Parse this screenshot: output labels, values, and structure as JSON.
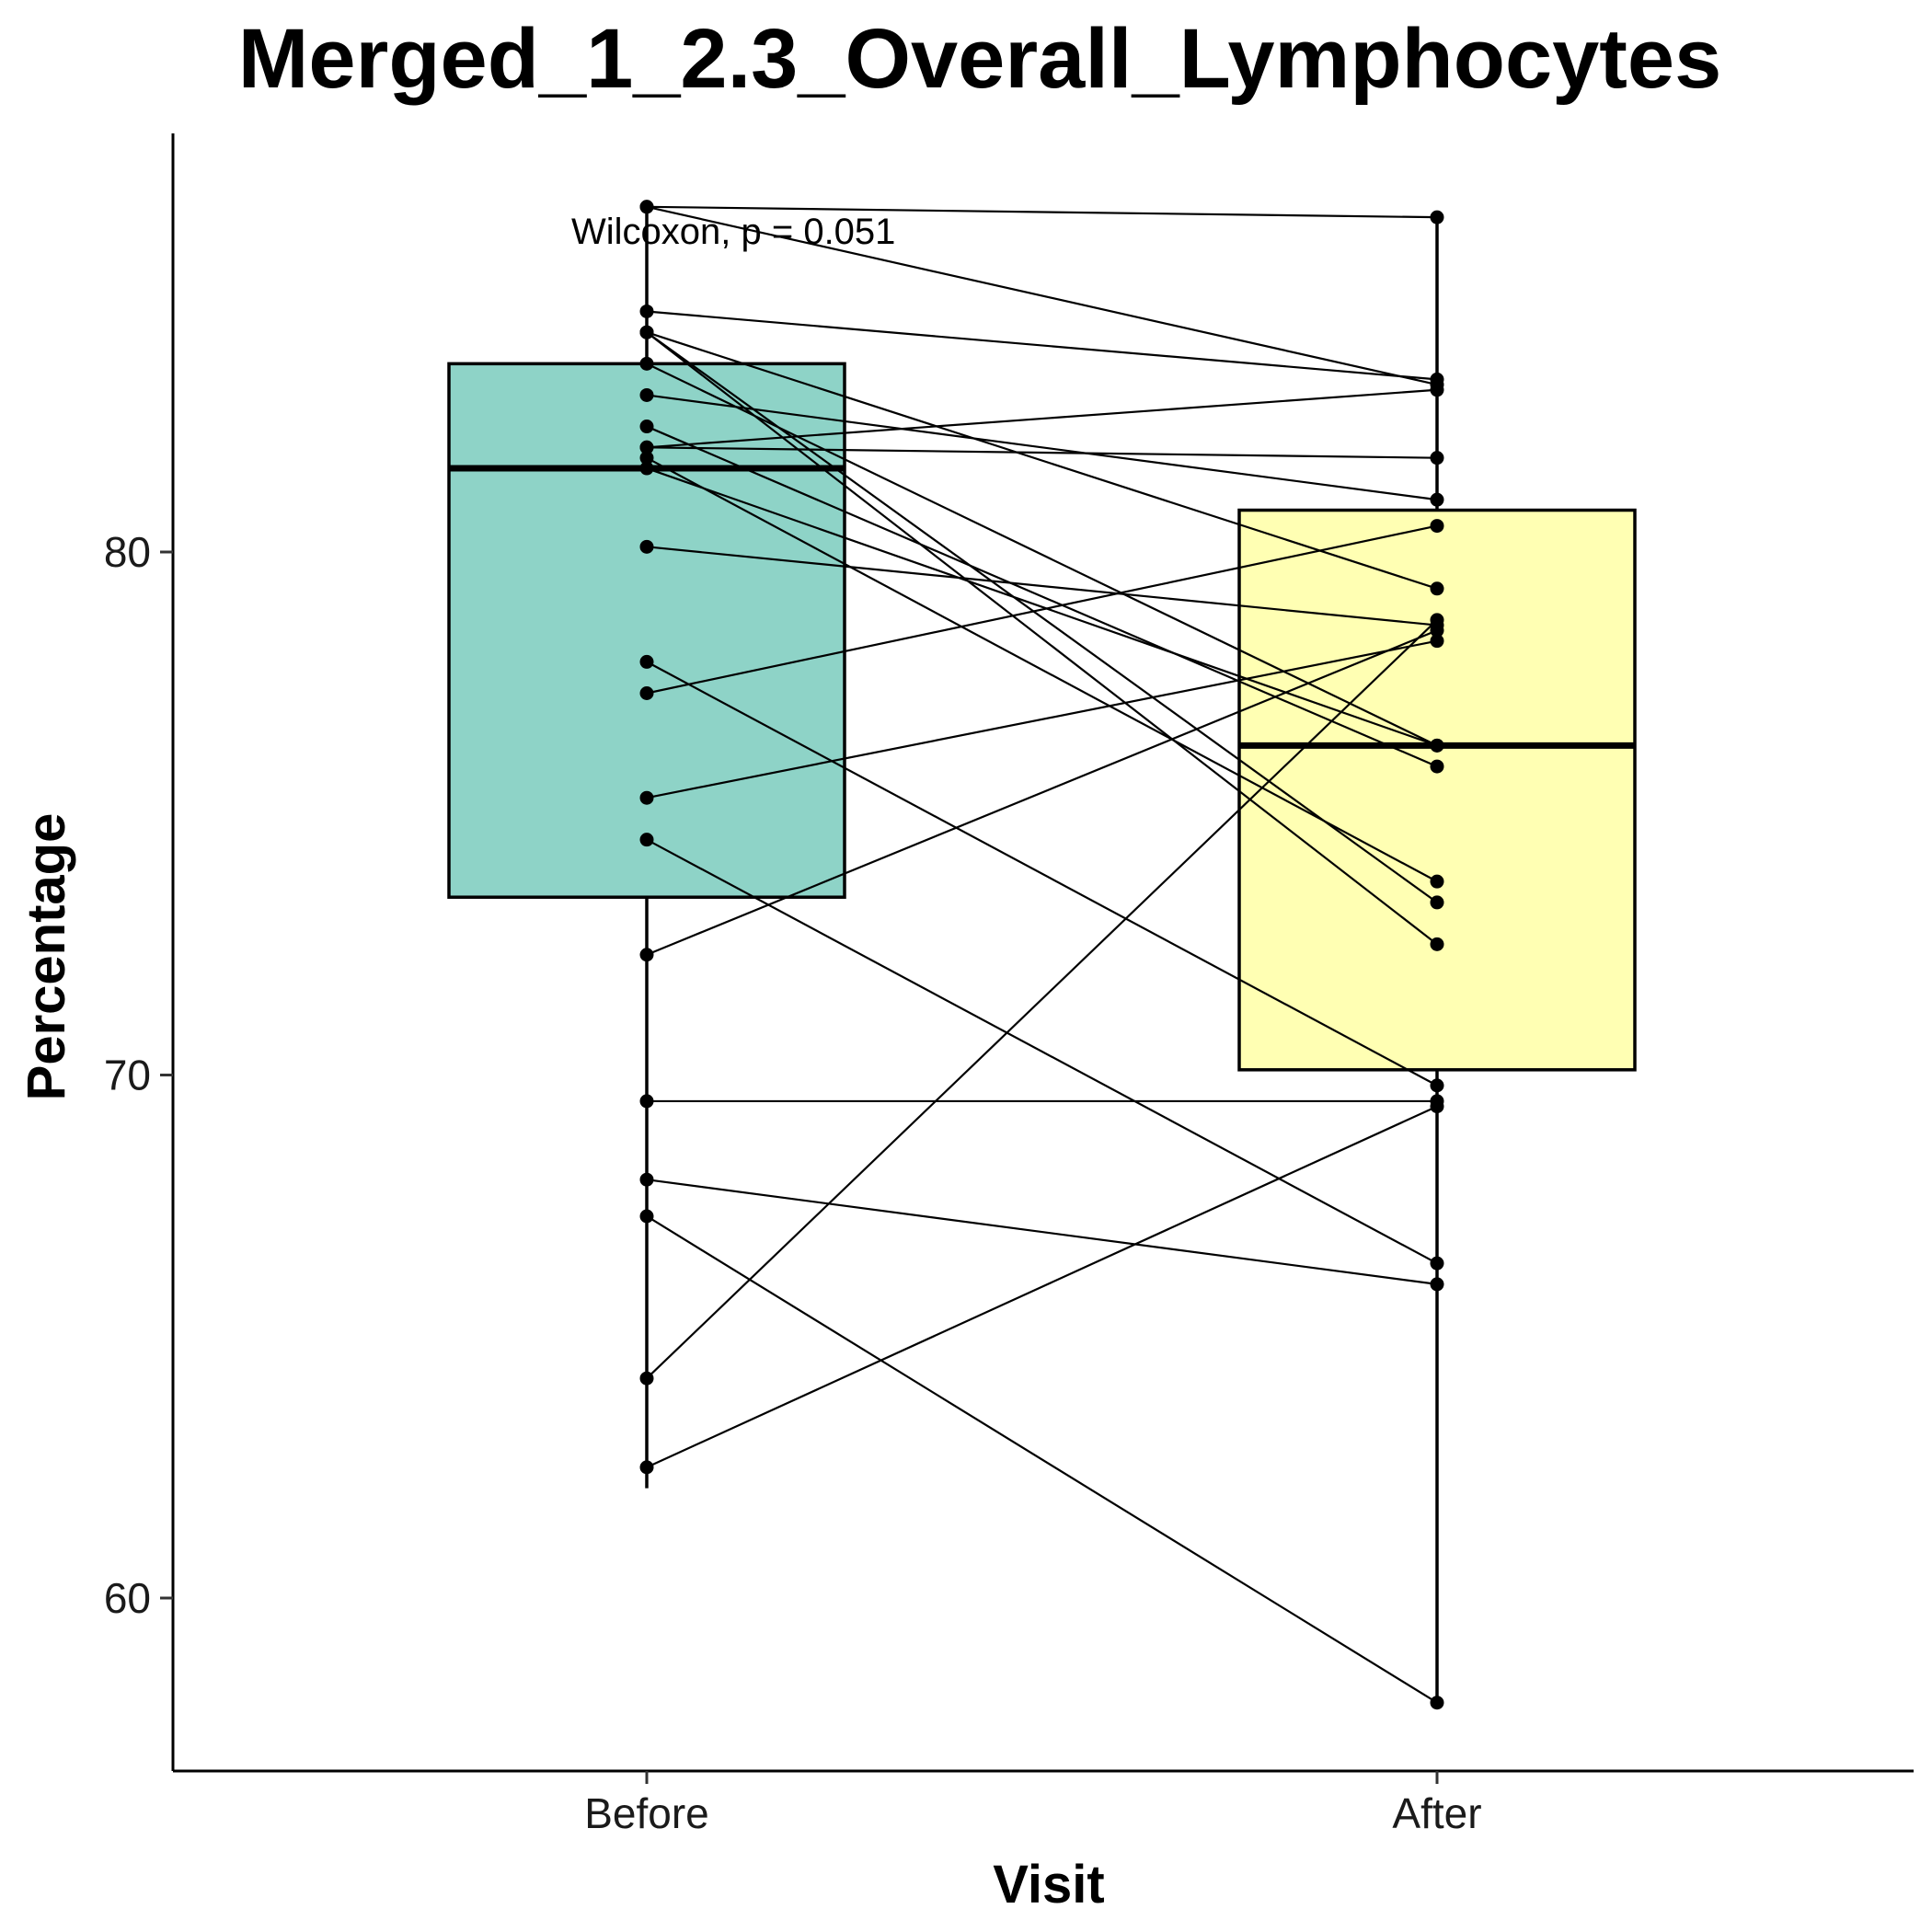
{
  "chart_data": {
    "type": "box",
    "title": "Merged_1_2.3_Overall_Lymphocytes",
    "xlabel": "Visit",
    "ylabel": "Percentage",
    "categories": [
      "Before",
      "After"
    ],
    "ylim": [
      56.5,
      88.5
    ],
    "yticks": [
      60,
      70,
      80
    ],
    "annotation": "Wilcoxon, p = 0.051",
    "colors": {
      "Before": "#8ED3C7",
      "After": "#FFFFB3",
      "line": "#000000"
    },
    "boxes": [
      {
        "group": "Before",
        "q1": 73.4,
        "median": 81.6,
        "q3": 83.6,
        "whisker_low": 62.1,
        "whisker_high": 86.6
      },
      {
        "group": "After",
        "q1": 70.1,
        "median": 76.3,
        "q3": 80.8,
        "whisker_low": 57.9,
        "whisker_high": 86.4
      }
    ],
    "pairs": [
      [
        86.6,
        86.4
      ],
      [
        86.6,
        83.2
      ],
      [
        84.6,
        83.3
      ],
      [
        84.2,
        79.3
      ],
      [
        83.0,
        81.0
      ],
      [
        84.2,
        73.3
      ],
      [
        84.2,
        72.5
      ],
      [
        83.6,
        76.3
      ],
      [
        82.4,
        75.9
      ],
      [
        82.0,
        81.8
      ],
      [
        82.0,
        83.1
      ],
      [
        81.8,
        73.7
      ],
      [
        81.6,
        76.3
      ],
      [
        80.1,
        78.6
      ],
      [
        77.9,
        69.8
      ],
      [
        77.3,
        80.5
      ],
      [
        75.3,
        78.3
      ],
      [
        74.5,
        66.4
      ],
      [
        72.3,
        78.5
      ],
      [
        69.5,
        69.5
      ],
      [
        68.0,
        66.0
      ],
      [
        67.3,
        58.0
      ],
      [
        64.2,
        78.7
      ],
      [
        62.5,
        69.4
      ]
    ]
  }
}
